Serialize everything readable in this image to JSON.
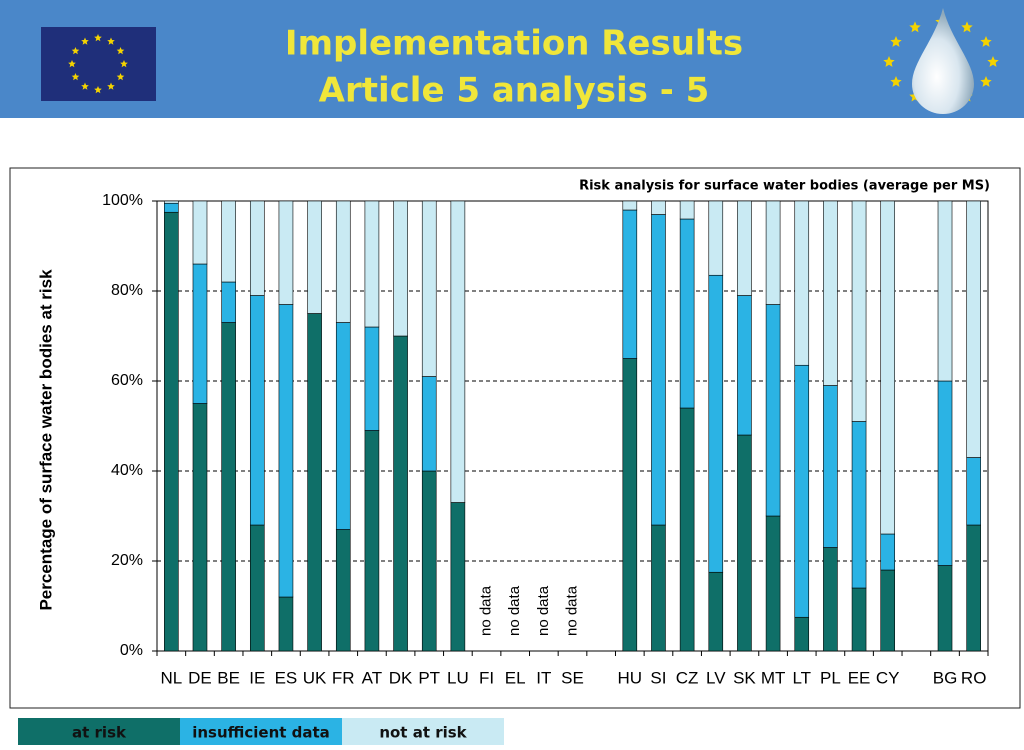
{
  "header": {
    "title_lines": [
      "Implementation Results",
      "Article 5 analysis - 5"
    ]
  },
  "chart_data": {
    "type": "stacked_bar",
    "title": "Risk analysis for surface water bodies  (average per MS)",
    "y_label": "Percentage of surface water bodies at risk",
    "categories": [
      "NL",
      "DE",
      "BE",
      "IE",
      "ES",
      "UK",
      "FR",
      "AT",
      "DK",
      "PT",
      "LU",
      "FI",
      "EL",
      "IT",
      "SE",
      null,
      "HU",
      "SI",
      "CZ",
      "LV",
      "SK",
      "MT",
      "LT",
      "PL",
      "EE",
      "CY",
      null,
      "BG",
      "RO"
    ],
    "category_notes": [
      null,
      null,
      null,
      null,
      null,
      null,
      null,
      null,
      null,
      null,
      null,
      "no data",
      "no data",
      "no data",
      "no data",
      null,
      null,
      null,
      null,
      null,
      null,
      null,
      null,
      null,
      null,
      null,
      null,
      null,
      null
    ],
    "series": [
      {
        "name": "at risk",
        "color": "#0f6f68",
        "values": [
          97.5,
          55,
          73,
          28,
          12,
          75,
          27,
          49,
          70,
          40,
          33,
          null,
          null,
          null,
          null,
          null,
          65,
          28,
          54,
          17.5,
          48,
          30,
          7.5,
          23,
          14,
          18,
          null,
          19,
          28
        ]
      },
      {
        "name": "insufficient data",
        "color": "#2bb3e4",
        "values": [
          2,
          31,
          9,
          51,
          65,
          0,
          46,
          23,
          0,
          21,
          0,
          null,
          null,
          null,
          null,
          null,
          33,
          69,
          42,
          66,
          31,
          47,
          56,
          36,
          37,
          8,
          null,
          41,
          15
        ]
      },
      {
        "name": "not at risk",
        "color": "#c9eaf3",
        "values": [
          0.5,
          14,
          18,
          21,
          23,
          25,
          27,
          28,
          30,
          39,
          67,
          null,
          null,
          null,
          null,
          null,
          2,
          3,
          4,
          16.5,
          21,
          23,
          36.5,
          41,
          49,
          74,
          null,
          40,
          57
        ]
      }
    ],
    "ylim": [
      0,
      100
    ],
    "yticks": [
      {
        "value": 0,
        "label": "0%"
      },
      {
        "value": 20,
        "label": "20%"
      },
      {
        "value": 40,
        "label": "40%"
      },
      {
        "value": 60,
        "label": "60%"
      },
      {
        "value": 80,
        "label": "80%"
      },
      {
        "value": 100,
        "label": "100%"
      }
    ],
    "grid": true,
    "legend": "bottom"
  }
}
